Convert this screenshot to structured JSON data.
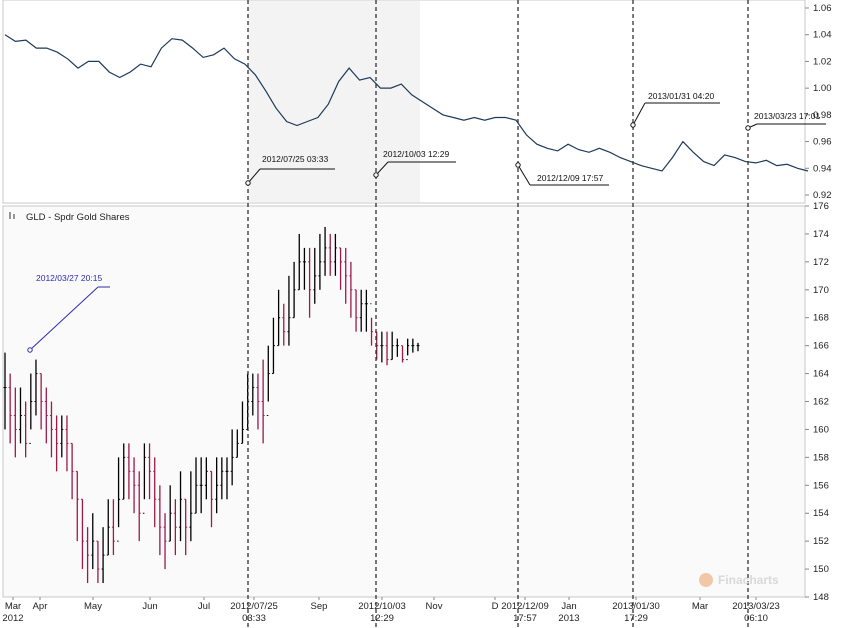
{
  "chart_data": [
    {
      "type": "line",
      "title": "",
      "ylim": [
        0.92,
        1.06
      ],
      "y_ticks": [
        "1.06",
        "1.04",
        "1.02",
        "1.00",
        "0.98",
        "0.96",
        "0.94",
        "0.92"
      ],
      "series": [
        {
          "color": "#1f3a5a",
          "x": [
            0,
            5,
            10,
            15,
            20,
            25,
            30,
            35,
            40,
            45,
            50,
            55,
            60,
            65,
            70,
            75,
            80,
            85,
            90,
            95,
            100,
            105,
            110,
            115,
            120,
            125,
            130,
            135,
            140,
            145,
            150,
            155,
            160,
            165,
            170,
            175,
            180,
            185,
            190,
            195,
            200,
            205,
            210,
            215,
            220,
            225,
            230,
            235,
            240,
            245,
            250,
            255,
            260,
            265,
            270,
            275,
            280,
            285,
            290,
            295,
            300,
            305,
            310,
            315,
            320,
            325,
            330,
            335,
            340,
            345,
            350,
            355,
            360,
            365,
            370,
            375,
            380,
            385
          ],
          "values": [
            1.04,
            1.035,
            1.036,
            1.03,
            1.03,
            1.027,
            1.022,
            1.015,
            1.02,
            1.02,
            1.012,
            1.008,
            1.012,
            1.018,
            1.016,
            1.03,
            1.037,
            1.036,
            1.03,
            1.023,
            1.025,
            1.03,
            1.022,
            1.018,
            1.01,
            0.998,
            0.985,
            0.975,
            0.972,
            0.975,
            0.978,
            0.988,
            1.005,
            1.015,
            1.006,
            1.008,
            1.0,
            1.0,
            1.003,
            0.995,
            0.99,
            0.985,
            0.98,
            0.978,
            0.976,
            0.978,
            0.976,
            0.978,
            0.978,
            0.976,
            0.965,
            0.958,
            0.955,
            0.953,
            0.958,
            0.954,
            0.952,
            0.955,
            0.952,
            0.948,
            0.945,
            0.942,
            0.94,
            0.938,
            0.948,
            0.96,
            0.952,
            0.945,
            0.942,
            0.95,
            0.948,
            0.945,
            0.944,
            0.946,
            0.942,
            0.943,
            0.94,
            0.938
          ]
        }
      ]
    },
    {
      "type": "bar",
      "title": "GLD - Spdr Gold Shares",
      "ylim": [
        148,
        176
      ],
      "y_ticks": [
        "176",
        "174",
        "172",
        "170",
        "168",
        "166",
        "164",
        "162",
        "160",
        "158",
        "156",
        "154",
        "152",
        "150",
        "148"
      ],
      "x_ticks": [
        {
          "label": "Mar",
          "sub": "2012"
        },
        {
          "label": "Apr",
          "sub": ""
        },
        {
          "label": "May",
          "sub": ""
        },
        {
          "label": "Jun",
          "sub": ""
        },
        {
          "label": "Jul",
          "sub": ""
        },
        {
          "label": "2012/07/25",
          "sub": "03:33"
        },
        {
          "label": "Sep",
          "sub": ""
        },
        {
          "label": "2012/10/03",
          "sub": "12:29"
        },
        {
          "label": "Nov",
          "sub": ""
        },
        {
          "label": "D",
          "sub": ""
        },
        {
          "label": "2012/12/09",
          "sub": "17:57"
        },
        {
          "label": "Jan",
          "sub": "2013"
        },
        {
          "label": "2013/01/30",
          "sub": "17:29"
        },
        {
          "label": "Mar",
          "sub": ""
        },
        {
          "label": "2013/03/23",
          "sub": "06:10"
        }
      ],
      "series": [
        {
          "colors": {
            "up": "#000000",
            "down": "#9b1a4a"
          },
          "x": [
            0,
            2,
            4,
            6,
            8,
            10,
            12,
            14,
            16,
            18,
            20,
            22,
            24,
            26,
            28,
            30,
            32,
            34,
            36,
            38,
            40,
            42,
            44,
            46,
            48,
            50,
            52,
            54,
            56,
            58,
            60,
            62,
            64,
            66,
            68,
            70,
            72,
            74,
            76,
            78,
            80,
            82,
            84,
            86,
            88,
            90,
            92,
            94,
            96,
            98,
            100,
            102,
            104,
            106,
            108,
            110,
            112,
            114,
            116,
            118,
            120,
            122,
            124,
            126,
            128,
            130,
            132,
            134,
            136,
            138,
            140,
            142,
            144,
            146,
            148,
            150,
            152,
            154,
            156,
            158,
            160
          ],
          "values": [
            163,
            161,
            160,
            161,
            159,
            162,
            164,
            162,
            161,
            160,
            159,
            160,
            159,
            157,
            155,
            152,
            151,
            152,
            150,
            151,
            153,
            152,
            155,
            158,
            157,
            156,
            154,
            158,
            157,
            155,
            153,
            152,
            154,
            153,
            155,
            153,
            154,
            156,
            156,
            157,
            155,
            156,
            157,
            157,
            158,
            159,
            160,
            162,
            163,
            162,
            161,
            164,
            166,
            168,
            167,
            168,
            170,
            172,
            172,
            170,
            171,
            172,
            173,
            172,
            173,
            172,
            171,
            170,
            168,
            169,
            169,
            167,
            166,
            166,
            165,
            166,
            166,
            165,
            166,
            166,
            166
          ],
          "highs": [
            165.5,
            164,
            163,
            163,
            162,
            164,
            165,
            164,
            163,
            162,
            161,
            161,
            161,
            159,
            157,
            155,
            153,
            154,
            152,
            153,
            155,
            155,
            158,
            159,
            159,
            158,
            157,
            159,
            159,
            158,
            156,
            154,
            156,
            155,
            157,
            155,
            157,
            158,
            158,
            158,
            157,
            158,
            158,
            158,
            160,
            160,
            162,
            164,
            164,
            164,
            165,
            166,
            168,
            170,
            169,
            171,
            172,
            174,
            173,
            173,
            173,
            174,
            174.5,
            174,
            174,
            173,
            173,
            172,
            170,
            170,
            170,
            168,
            167,
            167,
            167,
            167,
            166.5,
            166,
            166.5,
            166.5,
            166.2
          ],
          "lows": [
            160,
            159,
            158,
            159,
            158,
            160,
            161,
            160,
            159,
            158,
            157,
            158,
            157,
            155,
            152,
            150,
            149,
            150,
            149,
            149,
            151,
            151,
            153,
            155,
            155,
            154,
            152,
            155,
            155,
            153,
            151,
            150,
            152,
            151,
            152,
            151,
            152,
            154,
            154,
            155,
            153,
            154,
            155,
            155,
            156,
            158,
            159,
            160,
            161,
            160,
            159,
            162,
            164,
            166,
            166,
            166,
            168,
            170,
            170,
            168,
            169,
            170,
            171,
            171,
            171,
            170,
            169,
            168,
            167,
            167,
            167,
            166,
            165,
            164.8,
            164.6,
            165,
            165.2,
            164.8,
            165.3,
            165.5,
            165.6
          ]
        }
      ]
    }
  ],
  "annotations": [
    {
      "text": "2012/07/25 03:33"
    },
    {
      "text": "2012/10/03 12:29"
    },
    {
      "text": "2012/12/09 17:57"
    },
    {
      "text": "2013/01/31 04:20"
    },
    {
      "text": "2013/03/23 17:01"
    },
    {
      "text": "2012/03/27 20:15"
    }
  ],
  "legend": {
    "label": "GLD - Spdr Gold Shares"
  },
  "watermark": "Finacharts"
}
